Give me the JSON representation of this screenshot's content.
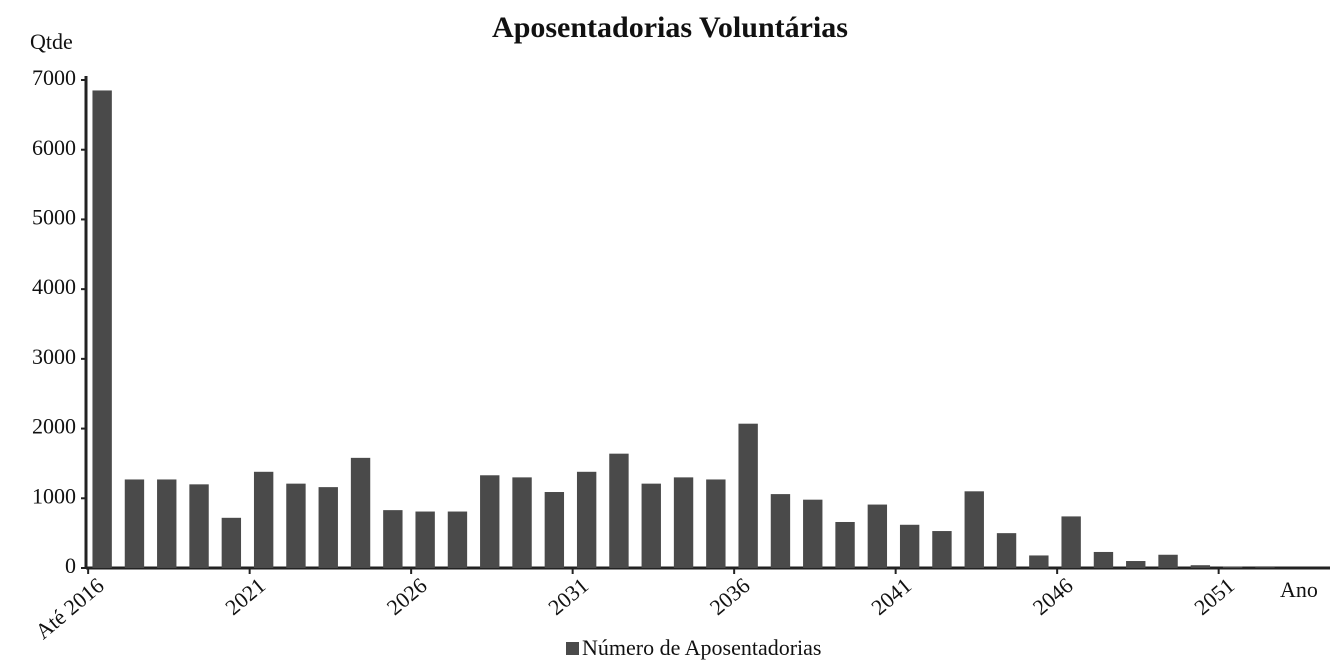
{
  "chart_data": {
    "type": "bar",
    "title": "Aposentadorias Voluntárias",
    "y_label": "Qtde",
    "x_label": "Ano",
    "categories": [
      "Até 2016",
      null,
      null,
      null,
      null,
      "2021",
      null,
      null,
      null,
      null,
      "2026",
      null,
      null,
      null,
      null,
      "2031",
      null,
      null,
      null,
      null,
      "2036",
      null,
      null,
      null,
      null,
      "2041",
      null,
      null,
      null,
      null,
      "2046",
      null,
      null,
      null,
      null,
      "2051",
      null
    ],
    "series": [
      {
        "name": "Número de Aposentadorias",
        "color": "#4a4a4a",
        "values": [
          6850,
          1270,
          1270,
          1200,
          720,
          1380,
          1210,
          1160,
          1580,
          830,
          810,
          810,
          1330,
          1300,
          1090,
          1380,
          1640,
          1210,
          1300,
          1270,
          2070,
          1060,
          980,
          660,
          910,
          620,
          530,
          1100,
          500,
          180,
          740,
          230,
          100,
          190,
          40,
          20,
          10
        ]
      }
    ],
    "ylim": [
      0,
      7000
    ],
    "yticks": [
      0,
      1000,
      2000,
      3000,
      4000,
      5000,
      6000,
      7000
    ],
    "grid": false
  }
}
